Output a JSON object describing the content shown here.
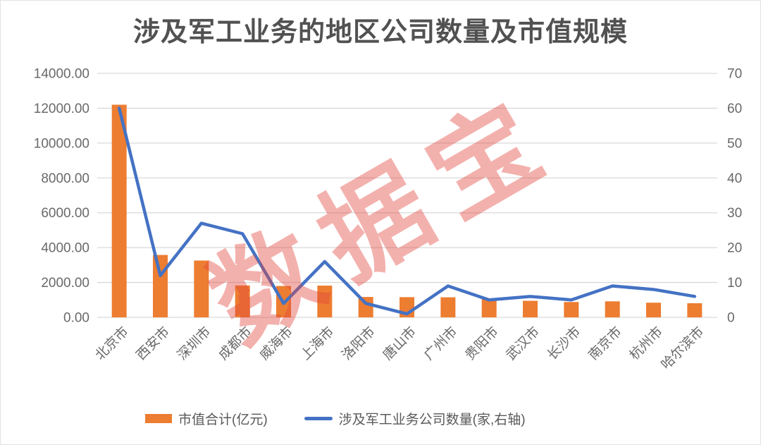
{
  "chart": {
    "title": "涉及军工业务的地区公司数量及市值规模",
    "watermark": "数据宝",
    "watermark_color": "rgba(226,68,60,0.42)",
    "legend": [
      {
        "label": "市值合计(亿元)",
        "marker": "bar",
        "color": "#ED7D31"
      },
      {
        "label": "涉及军工业务公司数量(家,右轴)",
        "marker": "line",
        "color": "#4472C4"
      }
    ]
  },
  "chart_data": {
    "type": "bar+line",
    "title": "涉及军工业务的地区公司数量及市值规模",
    "categories": [
      "北京市",
      "西安市",
      "深圳市",
      "成都市",
      "威海市",
      "上海市",
      "洛阳市",
      "唐山市",
      "广州市",
      "贵阳市",
      "武汉市",
      "长沙市",
      "南京市",
      "杭州市",
      "哈尔滨市"
    ],
    "series": [
      {
        "name": "市值合计(亿元)",
        "type": "bar",
        "axis": "left",
        "color": "#ED7D31",
        "values": [
          12200,
          3580,
          3260,
          1830,
          1800,
          1820,
          1170,
          1160,
          1150,
          1080,
          950,
          880,
          920,
          840,
          810
        ]
      },
      {
        "name": "涉及军工业务公司数量(家,右轴)",
        "type": "line",
        "axis": "right",
        "color": "#4472C4",
        "values": [
          60,
          12,
          27,
          24,
          4,
          16,
          4,
          1,
          9,
          5,
          6,
          5,
          9,
          8,
          6
        ]
      }
    ],
    "left_axis": {
      "min": 0,
      "max": 14000,
      "step": 2000,
      "tick_labels": [
        "14000.00",
        "12000.00",
        "10000.00",
        "8000.00",
        "6000.00",
        "4000.00",
        "2000.00",
        "0.00"
      ]
    },
    "right_axis": {
      "min": 0,
      "max": 70,
      "step": 10,
      "tick_labels": [
        "70",
        "60",
        "50",
        "40",
        "30",
        "20",
        "10",
        "0"
      ]
    },
    "grid": true,
    "grid_color": "#D9D9D9",
    "axis_color": "#696969",
    "legend_position": "bottom"
  }
}
